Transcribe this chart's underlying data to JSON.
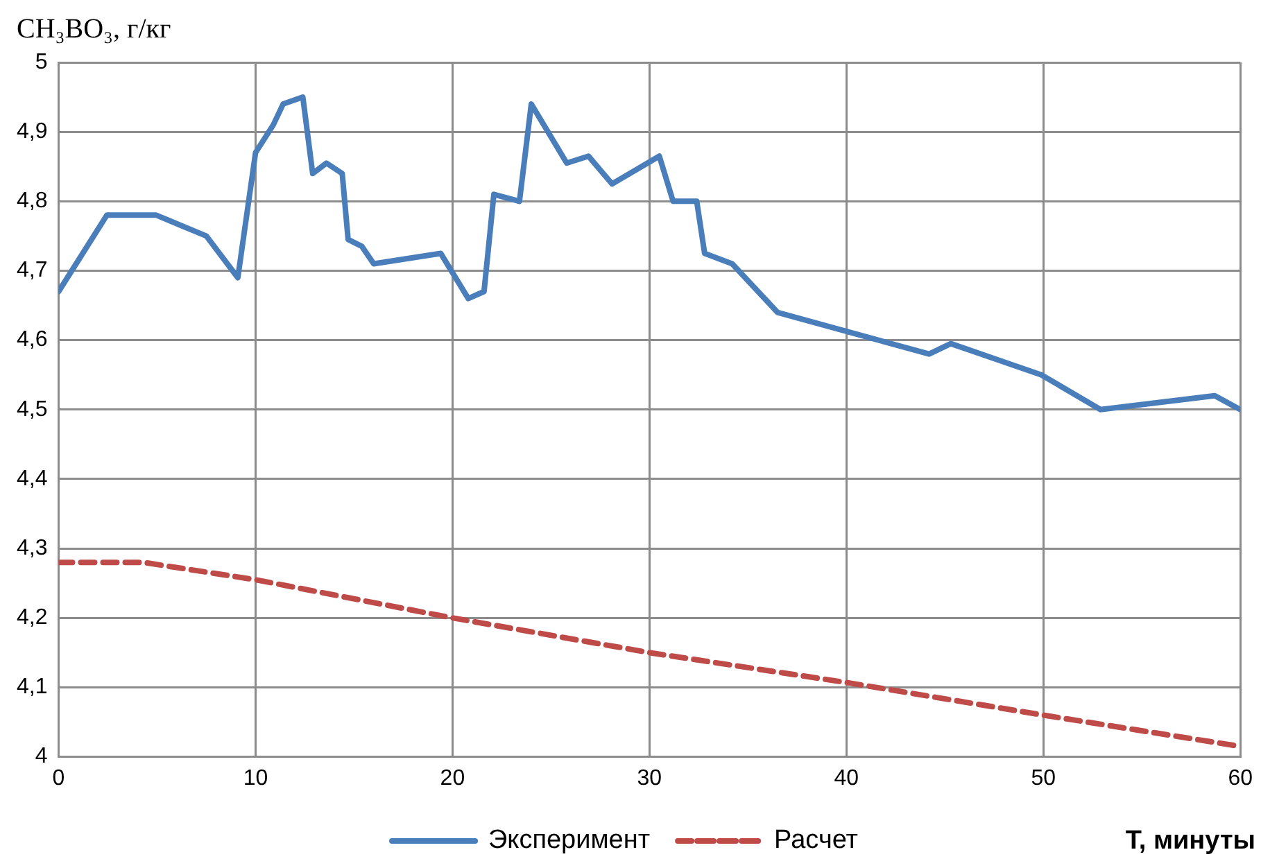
{
  "chart_data": {
    "type": "line",
    "ylabel": "CH₃BO₃, г/кг",
    "xlabel": "T, минуты",
    "xlim": [
      0,
      60
    ],
    "xticks": [
      0,
      10,
      20,
      30,
      40,
      50,
      60
    ],
    "ylim": [
      4,
      5
    ],
    "yticks": [
      4,
      {
        "value": 4.1,
        "label": "4,1"
      },
      {
        "value": 4.2,
        "label": "4,2"
      },
      {
        "value": 4.3,
        "label": "4,3"
      },
      {
        "value": 4.4,
        "label": "4,4"
      },
      {
        "value": 4.5,
        "label": "4,5"
      },
      {
        "value": 4.6,
        "label": "4,6"
      },
      {
        "value": 4.7,
        "label": "4,7"
      },
      {
        "value": 4.8,
        "label": "4,8"
      },
      {
        "value": 4.9,
        "label": "4,9"
      },
      5
    ],
    "grid": true,
    "legend": "bottom",
    "marker": "none",
    "series": [
      {
        "name": "Эксперимент",
        "color": "#4a7ebb",
        "line_style": "solid",
        "x": [
          0,
          2.45,
          4.96,
          7.5,
          9.1,
          10,
          10.9,
          11.4,
          12.4,
          12.9,
          13.6,
          14.4,
          14.7,
          15.4,
          16,
          19.4,
          20.8,
          21.6,
          22.1,
          23.4,
          24,
          25.8,
          26.9,
          28.1,
          30.5,
          31.2,
          32.4,
          32.8,
          34.2,
          36.5,
          44.2,
          45.3,
          49.9,
          52.9,
          58.7,
          60
        ],
        "values": [
          4.67,
          4.78,
          4.78,
          4.75,
          4.69,
          4.87,
          4.91,
          4.94,
          4.95,
          4.84,
          4.855,
          4.84,
          4.745,
          4.735,
          4.71,
          4.725,
          4.66,
          4.67,
          4.81,
          4.8,
          4.94,
          4.855,
          4.865,
          4.825,
          4.865,
          4.8,
          4.8,
          4.725,
          4.71,
          4.64,
          4.58,
          4.595,
          4.55,
          4.5,
          4.52,
          4.5
        ]
      },
      {
        "name": "Расчет",
        "color": "#be4b48",
        "line_style": "dashed",
        "x": [
          0,
          4.3,
          10,
          20,
          30,
          40,
          50,
          60
        ],
        "values": [
          4.28,
          4.28,
          4.255,
          4.2,
          4.15,
          4.107,
          4.06,
          4.015
        ]
      }
    ]
  }
}
